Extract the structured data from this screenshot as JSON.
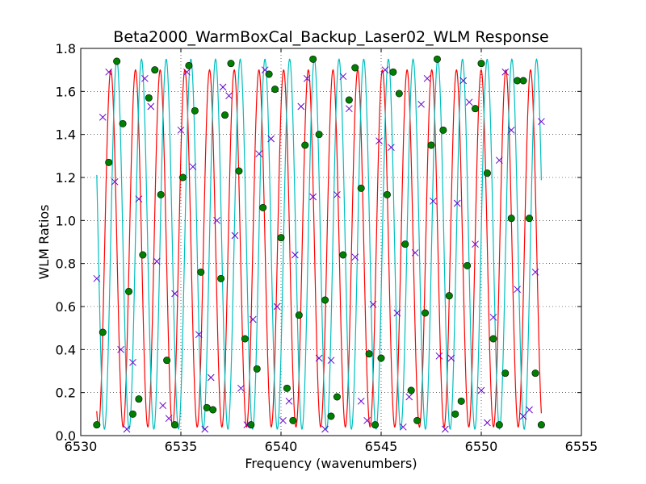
{
  "chart_data": {
    "type": "line",
    "title": "Beta2000_WarmBoxCal_Backup_Laser02_WLM Response",
    "xlabel": "Frequency (wavenumbers)",
    "ylabel": "WLM Ratios",
    "xlim": [
      6530,
      6555
    ],
    "ylim": [
      0.0,
      1.8
    ],
    "x_ticks": [
      "6530",
      "6535",
      "6540",
      "6545",
      "6550",
      "6555"
    ],
    "y_ticks": [
      "0.0",
      "0.2",
      "0.4",
      "0.6",
      "0.8",
      "1.0",
      "1.2",
      "1.4",
      "1.6",
      "1.8"
    ],
    "grid": true,
    "colors": {
      "red_fit": "#ff0000",
      "cyan_fit": "#00bfbf",
      "markers_circle": "#008000",
      "markers_cross": "#6600cc",
      "grid": "#000000"
    },
    "fit_curves": [
      {
        "color": "red",
        "amplitude": 0.83,
        "offset": 0.87,
        "period": 1.233,
        "x_start": 6530.8,
        "x_end": 6553.0,
        "peak_at": 6531.5
      },
      {
        "color": "cyan",
        "amplitude": 0.86,
        "offset": 0.89,
        "period": 1.233,
        "x_start": 6530.8,
        "x_end": 6553.0,
        "peak_at": 6531.8
      }
    ],
    "series": [
      {
        "marker": "circle",
        "color": "green",
        "x": [
          6530.8,
          6531.1,
          6531.4,
          6531.8,
          6532.1,
          6532.4,
          6532.6,
          6532.9,
          6533.1,
          6533.4,
          6533.7,
          6534.0,
          6534.3,
          6534.7,
          6535.1,
          6535.4,
          6535.7,
          6536.0,
          6536.3,
          6536.6,
          6537.0,
          6537.2,
          6537.5,
          6537.9,
          6538.2,
          6538.5,
          6538.8,
          6539.1,
          6539.4,
          6539.7,
          6540.0,
          6540.3,
          6540.6,
          6540.9,
          6541.2,
          6541.6,
          6541.9,
          6542.2,
          6542.5,
          6542.8,
          6543.1,
          6543.4,
          6543.7,
          6544.0,
          6544.4,
          6544.7,
          6545.0,
          6545.3,
          6545.6,
          6545.9,
          6546.2,
          6546.5,
          6546.8,
          6547.2,
          6547.5,
          6547.8,
          6548.1,
          6548.4,
          6548.7,
          6549.0,
          6549.3,
          6549.7,
          6550.0,
          6550.3,
          6550.6,
          6550.9,
          6551.2,
          6551.5,
          6551.8,
          6552.1,
          6552.4,
          6552.7,
          6553.0
        ],
        "y": [
          0.05,
          0.48,
          1.27,
          1.74,
          1.45,
          0.67,
          0.1,
          0.17,
          0.84,
          1.57,
          1.7,
          1.12,
          0.35,
          0.05,
          1.2,
          1.72,
          1.51,
          0.76,
          0.13,
          0.12,
          0.73,
          1.49,
          1.73,
          1.23,
          0.45,
          0.05,
          0.31,
          1.06,
          1.68,
          1.61,
          0.92,
          0.22,
          0.07,
          0.56,
          1.35,
          1.75,
          1.4,
          0.63,
          0.09,
          0.18,
          0.84,
          1.56,
          1.71,
          1.15,
          0.38,
          0.05,
          0.36,
          1.12,
          1.69,
          1.59,
          0.89,
          0.21,
          0.07,
          0.57,
          1.35,
          1.75,
          1.42,
          0.65,
          0.1,
          0.16,
          0.79,
          1.52,
          1.73,
          1.22,
          0.45,
          0.05,
          0.29,
          1.01,
          1.65,
          1.65,
          1.01,
          0.29,
          0.05
        ]
      },
      {
        "marker": "x",
        "color": "purple",
        "x": [
          6530.8,
          6531.1,
          6531.4,
          6531.7,
          6532.0,
          6532.3,
          6532.6,
          6532.9,
          6533.2,
          6533.5,
          6533.8,
          6534.1,
          6534.4,
          6534.7,
          6535.0,
          6535.3,
          6535.6,
          6535.9,
          6536.2,
          6536.5,
          6536.8,
          6537.1,
          6537.4,
          6537.7,
          6538.0,
          6538.3,
          6538.6,
          6538.9,
          6539.2,
          6539.5,
          6539.8,
          6540.1,
          6540.4,
          6540.7,
          6541.0,
          6541.3,
          6541.6,
          6541.9,
          6542.2,
          6542.5,
          6542.8,
          6543.1,
          6543.4,
          6543.7,
          6544.0,
          6544.3,
          6544.6,
          6544.9,
          6545.2,
          6545.5,
          6545.8,
          6546.1,
          6546.4,
          6546.7,
          6547.0,
          6547.3,
          6547.6,
          6547.9,
          6548.2,
          6548.5,
          6548.8,
          6549.1,
          6549.4,
          6549.7,
          6550.0,
          6550.3,
          6550.6,
          6550.9,
          6551.2,
          6551.5,
          6551.8,
          6552.1,
          6552.4,
          6552.7,
          6553.0
        ],
        "y": [
          0.73,
          1.48,
          1.69,
          1.18,
          0.4,
          0.03,
          0.34,
          1.1,
          1.66,
          1.53,
          0.81,
          0.14,
          0.08,
          0.66,
          1.42,
          1.69,
          1.25,
          0.47,
          0.03,
          0.27,
          1.0,
          1.62,
          1.58,
          0.93,
          0.22,
          0.05,
          0.54,
          1.31,
          1.7,
          1.38,
          0.6,
          0.07,
          0.16,
          0.84,
          1.53,
          1.66,
          1.11,
          0.36,
          0.03,
          0.35,
          1.12,
          1.67,
          1.52,
          0.83,
          0.16,
          0.07,
          0.61,
          1.37,
          1.7,
          1.34,
          0.57,
          0.04,
          0.18,
          0.85,
          1.54,
          1.66,
          1.09,
          0.37,
          0.03,
          0.36,
          1.08,
          1.65,
          1.55,
          0.89,
          0.21,
          0.06,
          0.55,
          1.28,
          1.69,
          1.42,
          0.68,
          0.09,
          0.12,
          0.76,
          1.46
        ]
      }
    ]
  }
}
